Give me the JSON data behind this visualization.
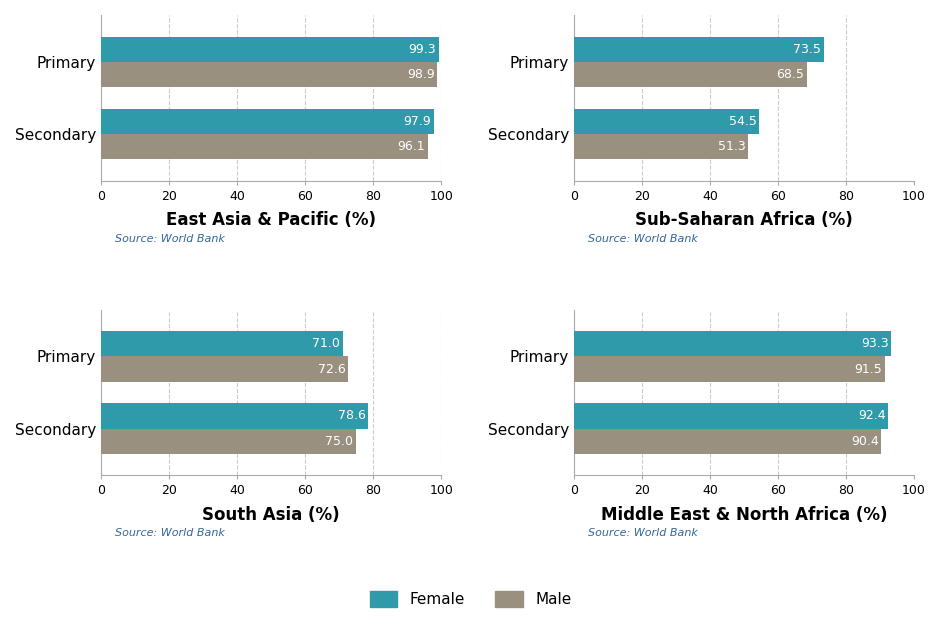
{
  "panels": [
    {
      "title": "East Asia & Pacific (%)",
      "categories": [
        "Secondary",
        "Primary"
      ],
      "female": [
        97.9,
        99.3
      ],
      "male": [
        96.1,
        98.9
      ]
    },
    {
      "title": "Sub-Saharan Africa (%)",
      "categories": [
        "Secondary",
        "Primary"
      ],
      "female": [
        54.5,
        73.5
      ],
      "male": [
        51.3,
        68.5
      ]
    },
    {
      "title": "South Asia (%)",
      "categories": [
        "Secondary",
        "Primary"
      ],
      "female": [
        78.6,
        71.0
      ],
      "male": [
        75.0,
        72.6
      ]
    },
    {
      "title": "Middle East & North Africa (%)",
      "categories": [
        "Secondary",
        "Primary"
      ],
      "female": [
        92.4,
        93.3
      ],
      "male": [
        90.4,
        91.5
      ]
    }
  ],
  "female_color": "#2e9aaa",
  "male_color": "#999080",
  "source_text": "Source: World Bank",
  "xlim": [
    0,
    100
  ],
  "xticks": [
    0,
    20,
    40,
    60,
    80,
    100
  ],
  "bar_height": 0.35,
  "label_fontsize": 9,
  "title_fontsize": 12,
  "source_fontsize": 8,
  "legend_fontsize": 11,
  "tick_fontsize": 9,
  "category_fontsize": 11
}
